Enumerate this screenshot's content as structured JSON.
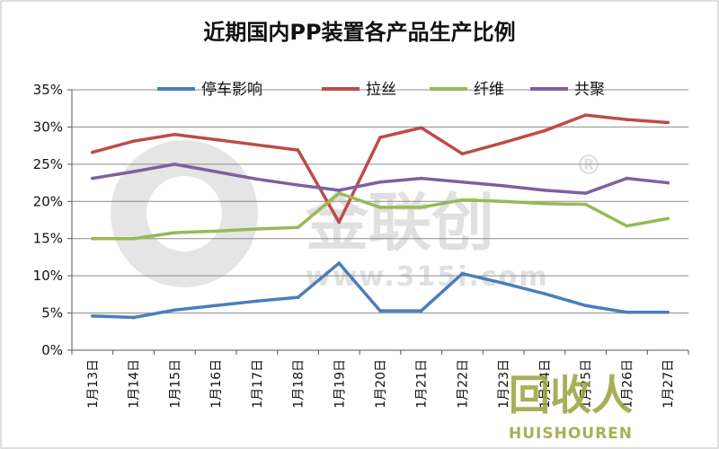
{
  "chart_data": {
    "type": "line",
    "title": "近期国内PP装置各产品生产比例",
    "categories": [
      "1月13日",
      "1月14日",
      "1月15日",
      "1月16日",
      "1月17日",
      "1月18日",
      "1月19日",
      "1月20日",
      "1月21日",
      "1月22日",
      "1月23日",
      "1月24日",
      "1月25日",
      "1月26日",
      "1月27日"
    ],
    "series": [
      {
        "name": "停车影响",
        "color": "#4a7ebb",
        "values": [
          4.6,
          4.4,
          5.4,
          6.0,
          6.6,
          7.1,
          11.7,
          5.3,
          5.3,
          10.3,
          9.0,
          7.6,
          6.0,
          5.1,
          5.1
        ]
      },
      {
        "name": "拉丝",
        "color": "#be4b48",
        "values": [
          26.6,
          28.1,
          29.0,
          28.3,
          27.6,
          26.9,
          17.2,
          28.6,
          29.9,
          26.4,
          27.9,
          29.5,
          31.6,
          31.0,
          30.6
        ]
      },
      {
        "name": "纤维",
        "color": "#98b954",
        "values": [
          15.0,
          15.0,
          15.8,
          16.0,
          16.3,
          16.5,
          21.1,
          19.2,
          19.2,
          20.2,
          20.0,
          19.7,
          19.6,
          16.7,
          17.7
        ]
      },
      {
        "name": "共聚",
        "color": "#7d60a0",
        "values": [
          23.1,
          24.0,
          25.0,
          24.0,
          23.0,
          22.2,
          21.5,
          22.6,
          23.1,
          22.6,
          22.1,
          21.5,
          21.1,
          23.1,
          22.5
        ]
      }
    ],
    "ylim": [
      0,
      35
    ],
    "yticks": [
      "0%",
      "5%",
      "10%",
      "15%",
      "20%",
      "25%",
      "30%",
      "35%"
    ],
    "grid": true,
    "legend": "top"
  },
  "watermark": {
    "main": "金联创",
    "reg": "®",
    "url": "www.315i.com",
    "corner": "回收人",
    "corner_sub": "HUISHOUREN"
  }
}
